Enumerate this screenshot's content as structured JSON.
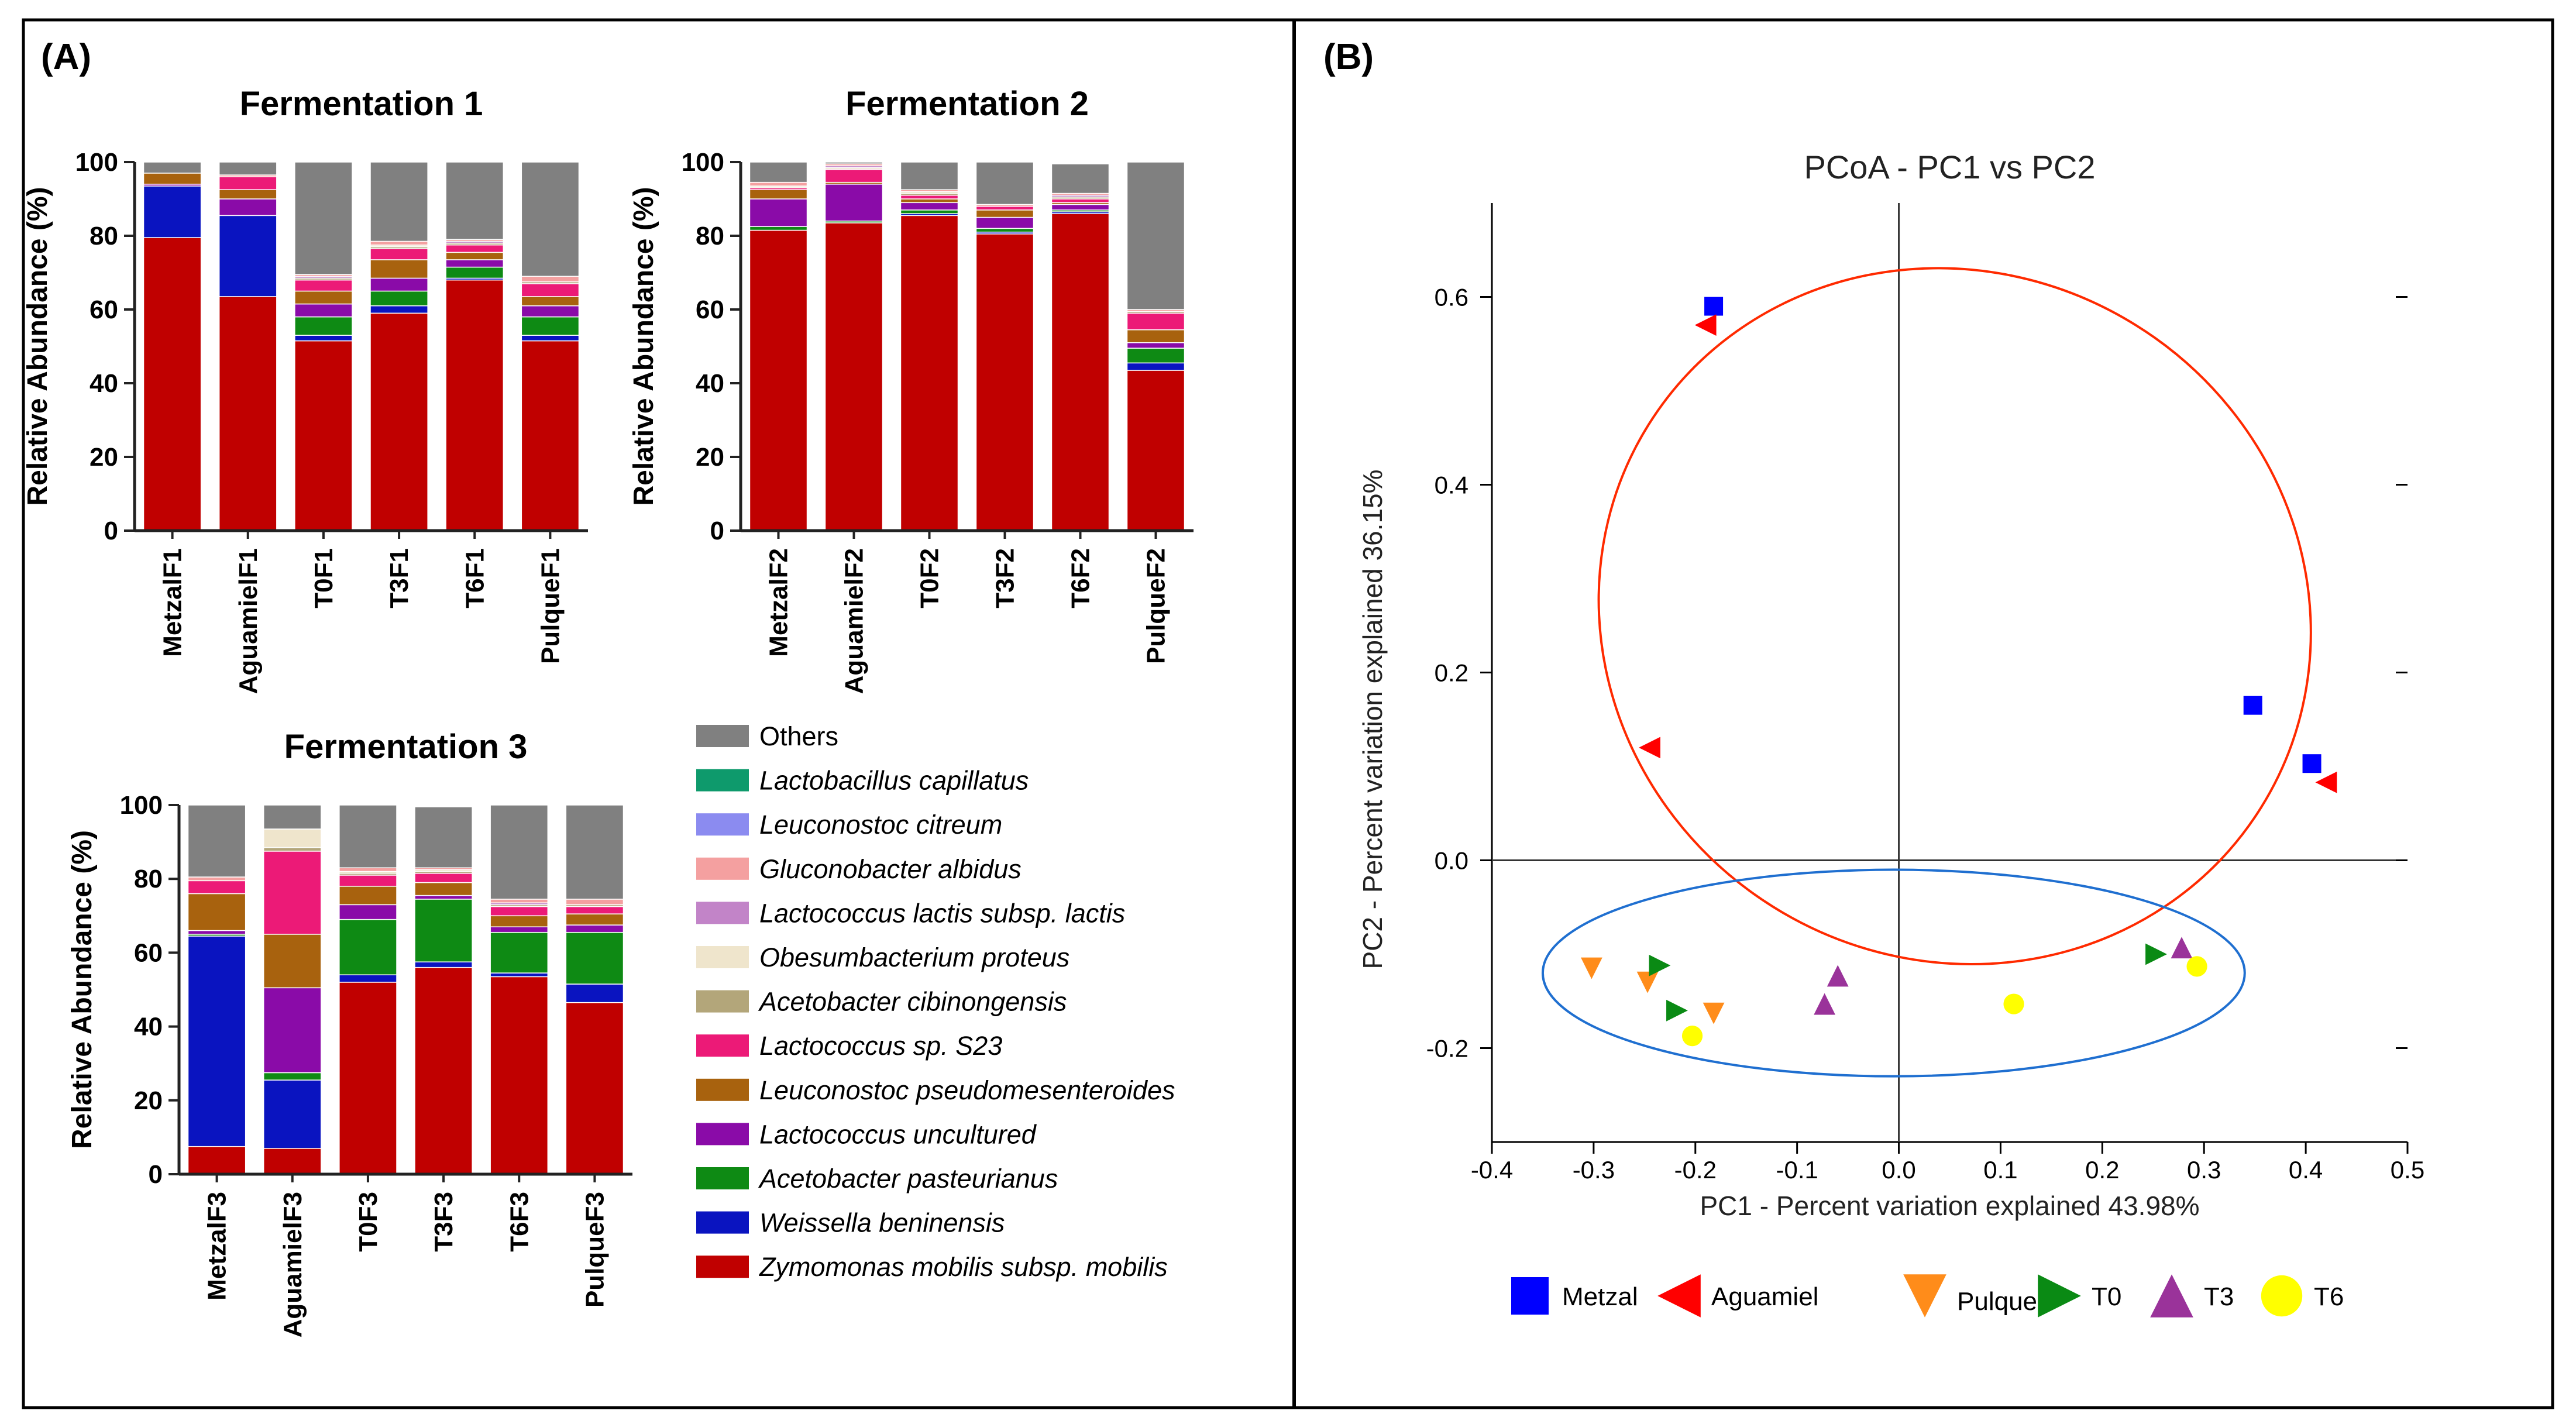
{
  "figure": {
    "panel_a_label": "(A)",
    "panel_b_label": "(B)"
  },
  "colors": {
    "Others": "#808080",
    "Lactobacillus capillatus": "#0e9a6c",
    "Leuconostoc citreum": "#8b8bf0",
    "Gluconobacter albidus": "#f4a0a0",
    "Lactococcus lactis subsp. lactis": "#c284c8",
    "Obesumbacterium proteus": "#efe5cc",
    "Acetobacter cibinongensis": "#b3a67a",
    "Lactococcus sp. S23": "#ec1a77",
    "Leuconostoc pseudomesenteroides": "#a8620e",
    "Lactococcus uncultured": "#8a0ba8",
    "Acetobacter pasteurianus": "#0e8a14",
    "Weissella beninensis": "#0a14c0",
    "Zymomonas mobilis subsp. mobilis": "#c00000"
  },
  "legend": {
    "items": [
      {
        "label": "Others",
        "italic": false
      },
      {
        "label": "Lactobacillus capillatus",
        "italic": true
      },
      {
        "label": "Leuconostoc citreum",
        "italic": true
      },
      {
        "label": "Gluconobacter albidus",
        "italic": true
      },
      {
        "label": "Lactococcus lactis subsp. lactis",
        "italic": true
      },
      {
        "label": "Obesumbacterium proteus",
        "italic": true
      },
      {
        "label": "Acetobacter cibinongensis",
        "italic": true
      },
      {
        "label": "Lactococcus sp. S23",
        "italic": true
      },
      {
        "label": "Leuconostoc pseudomesenteroides",
        "italic": true
      },
      {
        "label": "Lactococcus uncultured",
        "italic": true
      },
      {
        "label": "Acetobacter pasteurianus",
        "italic": true
      },
      {
        "label": "Weissella beninensis",
        "italic": true
      },
      {
        "label": "Zymomonas mobilis subsp. mobilis",
        "italic": true
      }
    ]
  },
  "chart_data": [
    {
      "type": "bar",
      "stacked": true,
      "title": "Fermentation 1",
      "xlabel": "",
      "ylabel": "Relative Abundance (%)",
      "ylim": [
        0,
        100
      ],
      "yticks": [
        0,
        20,
        40,
        60,
        80,
        100
      ],
      "categories": [
        "MetzalF1",
        "AguamielF1",
        "T0F1",
        "T3F1",
        "T6F1",
        "PulqueF1"
      ],
      "series": [
        {
          "name": "Zymomonas mobilis subsp. mobilis",
          "values": [
            79.5,
            63.5,
            51.5,
            59,
            68,
            51.5
          ]
        },
        {
          "name": "Weissella beninensis",
          "values": [
            14,
            22,
            1.5,
            2,
            0.5,
            1.5
          ]
        },
        {
          "name": "Acetobacter pasteurianus",
          "values": [
            0,
            0,
            5,
            4,
            3,
            5
          ]
        },
        {
          "name": "Lactococcus uncultured",
          "values": [
            0.5,
            4.5,
            3.5,
            3.5,
            2,
            3
          ]
        },
        {
          "name": "Leuconostoc pseudomesenteroides",
          "values": [
            3,
            2.5,
            3.5,
            5,
            2,
            2.5
          ]
        },
        {
          "name": "Lactococcus sp. S23",
          "values": [
            0,
            3.5,
            3,
            3,
            2,
            3.5
          ]
        },
        {
          "name": "Acetobacter cibinongensis",
          "values": [
            0,
            0,
            0.5,
            0.5,
            0.5,
            0.5
          ]
        },
        {
          "name": "Obesumbacterium proteus",
          "values": [
            0,
            0,
            0,
            0.5,
            0,
            0
          ]
        },
        {
          "name": "Lactococcus lactis subsp. lactis",
          "values": [
            0,
            0,
            0.5,
            0,
            0.5,
            0
          ]
        },
        {
          "name": "Gluconobacter albidus",
          "values": [
            0,
            0.5,
            0.5,
            1,
            0.5,
            1.5
          ]
        },
        {
          "name": "Leuconostoc citreum",
          "values": [
            0,
            0,
            0,
            0,
            0,
            0
          ]
        },
        {
          "name": "Lactobacillus capillatus",
          "values": [
            0,
            0,
            0,
            0,
            0,
            0
          ]
        },
        {
          "name": "Others",
          "values": [
            3,
            3.5,
            30.5,
            21.5,
            21,
            31
          ]
        }
      ]
    },
    {
      "type": "bar",
      "stacked": true,
      "title": "Fermentation 2",
      "xlabel": "",
      "ylabel": "Relative Abundance (%)",
      "ylim": [
        0,
        100
      ],
      "yticks": [
        0,
        20,
        40,
        60,
        80,
        100
      ],
      "categories": [
        "MetzalF2",
        "AguamielF2",
        "T0F2",
        "T3F2",
        "T6F2",
        "PulqueF2"
      ],
      "series": [
        {
          "name": "Zymomonas mobilis subsp. mobilis",
          "values": [
            81.5,
            83.5,
            85.5,
            80.5,
            86,
            43.5
          ]
        },
        {
          "name": "Weissella beninensis",
          "values": [
            0,
            0,
            0.5,
            0.5,
            0.5,
            2
          ]
        },
        {
          "name": "Acetobacter pasteurianus",
          "values": [
            1,
            0.5,
            1,
            1,
            0.5,
            4
          ]
        },
        {
          "name": "Lactococcus uncultured",
          "values": [
            7.5,
            10,
            2,
            3,
            1.5,
            1.5
          ]
        },
        {
          "name": "Leuconostoc pseudomesenteroides",
          "values": [
            2.5,
            0.5,
            1,
            2,
            0.5,
            3.5
          ]
        },
        {
          "name": "Lactococcus sp. S23",
          "values": [
            0.5,
            3.5,
            1,
            1,
            1,
            4.5
          ]
        },
        {
          "name": "Acetobacter cibinongensis",
          "values": [
            0,
            0,
            0.5,
            0,
            0.5,
            0.5
          ]
        },
        {
          "name": "Obesumbacterium proteus",
          "values": [
            0.5,
            0.5,
            0.5,
            0,
            0,
            0
          ]
        },
        {
          "name": "Lactococcus lactis subsp. lactis",
          "values": [
            0,
            0.5,
            0,
            0,
            0.5,
            0
          ]
        },
        {
          "name": "Gluconobacter albidus",
          "values": [
            1,
            0.5,
            0.5,
            0.5,
            0.5,
            0.5
          ]
        },
        {
          "name": "Leuconostoc citreum",
          "values": [
            0,
            0,
            0,
            0,
            0,
            0
          ]
        },
        {
          "name": "Lactobacillus capillatus",
          "values": [
            0,
            0,
            0,
            0,
            0,
            0
          ]
        },
        {
          "name": "Others",
          "values": [
            5.5,
            0.5,
            7.5,
            11.5,
            8,
            40
          ]
        }
      ]
    },
    {
      "type": "bar",
      "stacked": true,
      "title": "Fermentation 3",
      "xlabel": "",
      "ylabel": "Relative Abundance (%)",
      "ylim": [
        0,
        100
      ],
      "yticks": [
        0,
        20,
        40,
        60,
        80,
        100
      ],
      "categories": [
        "MetzalF3",
        "AguamielF3",
        "T0F3",
        "T3F3",
        "T6F3",
        "PulqueF3"
      ],
      "series": [
        {
          "name": "Zymomonas mobilis subsp. mobilis",
          "values": [
            7.5,
            7,
            52,
            56,
            53.5,
            46.5
          ]
        },
        {
          "name": "Weissella beninensis",
          "values": [
            57,
            18.5,
            2,
            1.5,
            1,
            5
          ]
        },
        {
          "name": "Acetobacter pasteurianus",
          "values": [
            0.5,
            2,
            15,
            17,
            11,
            14
          ]
        },
        {
          "name": "Lactococcus uncultured",
          "values": [
            1,
            23,
            4,
            1,
            1.5,
            2
          ]
        },
        {
          "name": "Leuconostoc pseudomesenteroides",
          "values": [
            10,
            14.5,
            5,
            3.5,
            3,
            3
          ]
        },
        {
          "name": "Lactococcus sp. S23",
          "values": [
            3.5,
            22.5,
            3,
            2.5,
            2.5,
            2
          ]
        },
        {
          "name": "Acetobacter cibinongensis",
          "values": [
            0,
            1,
            0.5,
            0.5,
            0.5,
            0.5
          ]
        },
        {
          "name": "Obesumbacterium proteus",
          "values": [
            0,
            5,
            0.5,
            0.5,
            0,
            0
          ]
        },
        {
          "name": "Lactococcus lactis subsp. lactis",
          "values": [
            0,
            0,
            0,
            0,
            0.5,
            0
          ]
        },
        {
          "name": "Gluconobacter albidus",
          "values": [
            1,
            0,
            1,
            0.5,
            1,
            1.5
          ]
        },
        {
          "name": "Leuconostoc citreum",
          "values": [
            0,
            0,
            0,
            0,
            0,
            0
          ]
        },
        {
          "name": "Lactobacillus capillatus",
          "values": [
            0,
            0,
            0,
            0,
            0,
            0
          ]
        },
        {
          "name": "Others",
          "values": [
            19.5,
            6.5,
            17,
            16.5,
            25.5,
            25.5
          ]
        }
      ]
    },
    {
      "type": "scatter",
      "title": "PCoA - PC1 vs PC2",
      "xlabel": "PC1 - Percent variation explained 43.98%",
      "ylabel": "PC2 - Percent variation explained 36.15%",
      "xlim": [
        -0.4,
        0.5
      ],
      "ylim": [
        -0.3,
        0.7
      ],
      "xticks": [
        "-0.4",
        "-0.3",
        "-0.2",
        "-0.1",
        "0.0",
        "0.1",
        "0.2",
        "0.3",
        "0.4",
        "0.5"
      ],
      "yticks": [
        "-0.2",
        "0.0",
        "0.2",
        "0.4",
        "0.6"
      ],
      "series": [
        {
          "name": "Metzal",
          "marker": "square",
          "color": "#0000ff",
          "points": [
            [
              -0.182,
              0.59
            ],
            [
              0.348,
              0.165
            ],
            [
              0.406,
              0.103
            ]
          ]
        },
        {
          "name": "Aguamiel",
          "marker": "triangle-left",
          "color": "#ff0000",
          "points": [
            [
              -0.19,
              0.57
            ],
            [
              -0.245,
              0.12
            ],
            [
              0.42,
              0.083
            ]
          ]
        },
        {
          "name": "Pulque",
          "marker": "triangle-down",
          "color": "#ff8c1a",
          "points": [
            [
              -0.302,
              -0.115
            ],
            [
              -0.247,
              -0.13
            ],
            [
              -0.182,
              -0.163
            ]
          ]
        },
        {
          "name": "T0",
          "marker": "triangle-right",
          "color": "#0a8a14",
          "points": [
            [
              -0.235,
              -0.112
            ],
            [
              -0.218,
              -0.16
            ],
            [
              0.253,
              -0.1
            ]
          ]
        },
        {
          "name": "T3",
          "marker": "triangle-up",
          "color": "#9a339a",
          "points": [
            [
              -0.06,
              -0.123
            ],
            [
              -0.073,
              -0.153
            ],
            [
              0.278,
              -0.093
            ]
          ]
        },
        {
          "name": "T6",
          "marker": "circle",
          "color": "#ffff00",
          "points": [
            [
              -0.203,
              -0.187
            ],
            [
              0.113,
              -0.153
            ],
            [
              0.293,
              -0.113
            ]
          ]
        }
      ],
      "ellipses": [
        {
          "color": "#ff2a00",
          "center": [
            0.055,
            0.26
          ],
          "rx": 0.355,
          "ry": 0.365
        },
        {
          "color": "#1f6fd0",
          "center": [
            -0.005,
            -0.12
          ],
          "rx": 0.345,
          "ry": 0.11
        }
      ]
    }
  ]
}
